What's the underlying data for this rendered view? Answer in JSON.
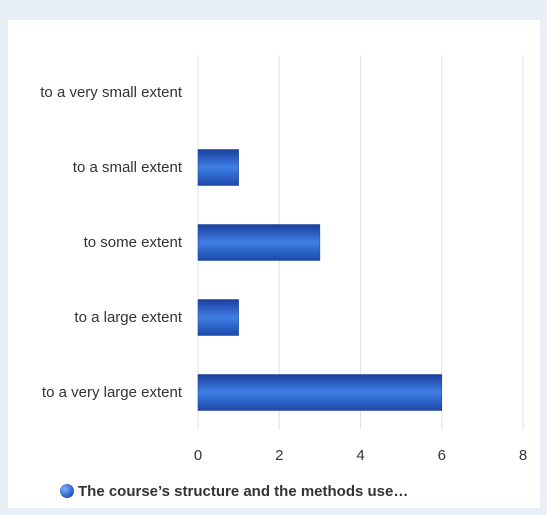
{
  "chart_data": {
    "type": "bar",
    "orientation": "horizontal",
    "categories": [
      "to a very small extent",
      "to a small extent",
      "to some extent",
      "to a large extent",
      "to a very large extent"
    ],
    "series": [
      {
        "name": "The course’s structure and the methods use…",
        "color": "#2a5fc4",
        "values": [
          0,
          1,
          3,
          1,
          6
        ]
      }
    ],
    "xlim": [
      0,
      8
    ],
    "xticks": [
      0,
      2,
      4,
      6,
      8
    ],
    "grid": true,
    "legend": "bottom"
  }
}
